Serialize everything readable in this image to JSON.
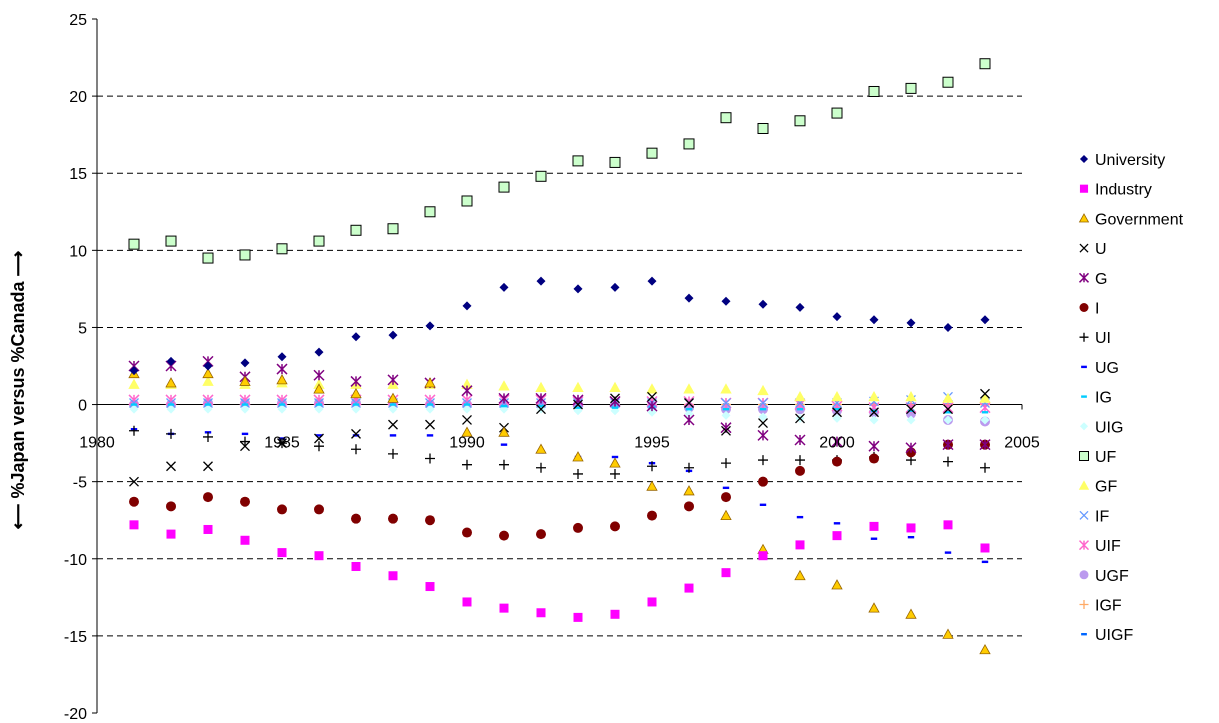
{
  "chart_data": {
    "type": "scatter",
    "title": "",
    "xlabel": "",
    "ylabel": "⟵ %Japan versus %Canada ⟶",
    "xlim": [
      1980,
      2005
    ],
    "ylim": [
      -20,
      25
    ],
    "xticks": [
      1980,
      1985,
      1990,
      1995,
      2000,
      2005
    ],
    "yticks": [
      -20,
      -15,
      -10,
      -5,
      0,
      5,
      10,
      15,
      20,
      25
    ],
    "grid": "horizontal dashed",
    "legend_position": "right",
    "x": [
      1981,
      1982,
      1983,
      1984,
      1985,
      1986,
      1987,
      1988,
      1989,
      1990,
      1991,
      1992,
      1993,
      1994,
      1995,
      1996,
      1997,
      1998,
      1999,
      2000,
      2001,
      2002,
      2003,
      2004
    ],
    "series": [
      {
        "name": "University",
        "marker": "diamond",
        "color": "#000080",
        "values": [
          2.2,
          2.8,
          2.5,
          2.7,
          3.1,
          3.4,
          4.4,
          4.5,
          5.1,
          6.4,
          7.6,
          8.0,
          7.5,
          7.6,
          8.0,
          6.9,
          6.7,
          6.5,
          6.3,
          5.7,
          5.5,
          5.3,
          5.0,
          5.5
        ]
      },
      {
        "name": "Industry",
        "marker": "square",
        "color": "#ff00ff",
        "values": [
          -7.8,
          -8.4,
          -8.1,
          -8.8,
          -9.6,
          -9.8,
          -10.5,
          -11.1,
          -11.8,
          -12.8,
          -13.2,
          -13.5,
          -13.8,
          -13.6,
          -12.8,
          -11.9,
          -10.9,
          -9.8,
          -9.1,
          -8.5,
          -7.9,
          -8.0,
          -7.8,
          -9.3
        ]
      },
      {
        "name": "Government",
        "marker": "triangle",
        "color": "#ffcc00",
        "values": [
          2.0,
          1.4,
          2.0,
          1.5,
          1.6,
          1.0,
          0.7,
          0.4,
          1.4,
          -1.8,
          -1.8,
          -2.9,
          -3.4,
          -3.8,
          -5.3,
          -5.6,
          -7.2,
          -9.4,
          -11.1,
          -11.7,
          -13.2,
          -13.6,
          -14.9,
          -15.9
        ]
      },
      {
        "name": "U",
        "marker": "x",
        "color": "#000000",
        "values": [
          -5.0,
          -4.0,
          -4.0,
          -2.7,
          -2.5,
          -2.2,
          -1.9,
          -1.3,
          -1.3,
          -1.0,
          -1.5,
          -0.3,
          0.0,
          0.4,
          0.5,
          0.1,
          -1.7,
          -1.2,
          -0.9,
          -0.5,
          -0.5,
          -0.3,
          -0.3,
          0.7
        ]
      },
      {
        "name": "G",
        "marker": "star",
        "color": "#800080",
        "values": [
          2.5,
          2.5,
          2.8,
          1.8,
          2.3,
          1.9,
          1.5,
          1.6,
          1.4,
          0.9,
          0.4,
          0.4,
          0.3,
          0.2,
          -0.1,
          -1.0,
          -1.5,
          -2.0,
          -2.3,
          -2.4,
          -2.7,
          -2.8,
          -2.6,
          -2.6
        ]
      },
      {
        "name": "I",
        "marker": "circle",
        "color": "#800000",
        "values": [
          -6.3,
          -6.6,
          -6.0,
          -6.3,
          -6.8,
          -6.8,
          -7.4,
          -7.4,
          -7.5,
          -8.3,
          -8.5,
          -8.4,
          -8.0,
          -7.9,
          -7.2,
          -6.6,
          -6.0,
          -5.0,
          -4.3,
          -3.7,
          -3.5,
          -3.1,
          -2.6,
          -2.6
        ]
      },
      {
        "name": "UI",
        "marker": "plus",
        "color": "#000000",
        "values": [
          -1.7,
          -1.9,
          -2.1,
          -2.4,
          -2.5,
          -2.7,
          -2.9,
          -3.2,
          -3.5,
          -3.9,
          -3.9,
          -4.1,
          -4.5,
          -4.5,
          -4.0,
          -4.1,
          -3.8,
          -3.6,
          -3.6,
          -3.6,
          -3.4,
          -3.6,
          -3.7,
          -4.1
        ]
      },
      {
        "name": "UG",
        "marker": "dash",
        "color": "#0000ff",
        "values": [
          -1.6,
          -1.9,
          -1.8,
          -1.9,
          -2.2,
          -2.0,
          -2.0,
          -2.0,
          -2.0,
          -2.0,
          -2.6,
          -3.1,
          -3.4,
          -3.4,
          -3.8,
          -4.3,
          -5.4,
          -6.5,
          -7.3,
          -7.7,
          -8.7,
          -8.6,
          -9.6,
          -10.2
        ]
      },
      {
        "name": "IG",
        "marker": "dash",
        "color": "#00ccff",
        "values": [
          0.0,
          0.0,
          0.0,
          0.0,
          0.0,
          0.0,
          0.0,
          0.0,
          0.0,
          0.0,
          -0.1,
          -0.1,
          -0.2,
          -0.2,
          -0.2,
          -0.3,
          -0.3,
          -0.3,
          -0.3,
          -0.3,
          -0.4,
          -0.4,
          -0.5,
          -0.5
        ]
      },
      {
        "name": "UIG",
        "marker": "diamond",
        "color": "#ccffff",
        "values": [
          -0.3,
          -0.3,
          -0.3,
          -0.3,
          -0.3,
          -0.3,
          -0.3,
          -0.3,
          -0.3,
          -0.3,
          -0.3,
          -0.3,
          -0.4,
          -0.4,
          -0.5,
          -0.6,
          -0.7,
          -0.8,
          -0.9,
          -0.9,
          -1.0,
          -1.0,
          -1.0,
          -1.0
        ]
      },
      {
        "name": "UF",
        "marker": "square-open",
        "color": "#339933",
        "values": [
          10.4,
          10.6,
          9.5,
          9.7,
          10.1,
          10.6,
          11.3,
          11.4,
          12.5,
          13.2,
          14.1,
          14.8,
          15.8,
          15.7,
          16.3,
          16.9,
          18.6,
          17.9,
          18.4,
          18.9,
          20.3,
          20.5,
          20.9,
          22.1
        ]
      },
      {
        "name": "GF",
        "marker": "triangle",
        "color": "#ffff66",
        "values": [
          1.3,
          1.3,
          1.5,
          1.3,
          1.4,
          1.3,
          1.3,
          1.3,
          1.3,
          1.3,
          1.2,
          1.1,
          1.1,
          1.1,
          1.0,
          1.0,
          1.0,
          0.9,
          0.5,
          0.5,
          0.5,
          0.5,
          0.4,
          0.4
        ]
      },
      {
        "name": "IF",
        "marker": "x",
        "color": "#6699ff",
        "values": [
          0.1,
          0.1,
          0.1,
          0.1,
          0.1,
          0.1,
          0.1,
          0.1,
          0.1,
          0.1,
          0.1,
          0.1,
          0.1,
          0.1,
          0.1,
          0.1,
          0.1,
          0.1,
          0.1,
          0.1,
          0.2,
          0.3,
          0.5,
          0.1
        ]
      },
      {
        "name": "UIF",
        "marker": "star",
        "color": "#ff66cc",
        "values": [
          0.3,
          0.3,
          0.3,
          0.3,
          0.3,
          0.3,
          0.3,
          0.3,
          0.3,
          0.3,
          0.3,
          0.3,
          0.2,
          0.2,
          0.2,
          0.2,
          0.1,
          0.1,
          0.0,
          -0.1,
          -0.2,
          -0.2,
          -0.2,
          -0.2
        ]
      },
      {
        "name": "UGF",
        "marker": "circle",
        "color": "#bb99ee",
        "values": [
          0.0,
          0.0,
          0.1,
          0.1,
          0.1,
          0.1,
          0.1,
          0.1,
          0.0,
          0.0,
          0.0,
          0.0,
          0.0,
          0.0,
          -0.1,
          -0.2,
          -0.3,
          -0.3,
          -0.3,
          -0.4,
          -0.5,
          -0.6,
          -1.0,
          -1.1
        ]
      },
      {
        "name": "IGF",
        "marker": "plus",
        "color": "#ffaa66",
        "values": [
          0.0,
          0.0,
          0.0,
          0.0,
          0.0,
          0.0,
          0.0,
          0.0,
          0.0,
          0.0,
          0.0,
          0.0,
          0.0,
          0.0,
          0.0,
          0.0,
          0.0,
          0.0,
          0.0,
          0.0,
          0.0,
          0.0,
          0.0,
          0.0
        ]
      },
      {
        "name": "UIGF",
        "marker": "dash",
        "color": "#0066ff",
        "values": [
          0.0,
          0.0,
          0.0,
          0.0,
          0.0,
          0.0,
          0.0,
          0.0,
          0.0,
          0.0,
          0.0,
          0.0,
          0.0,
          0.0,
          0.0,
          0.0,
          0.0,
          0.0,
          0.0,
          0.0,
          0.0,
          0.0,
          0.0,
          0.0
        ]
      }
    ]
  }
}
